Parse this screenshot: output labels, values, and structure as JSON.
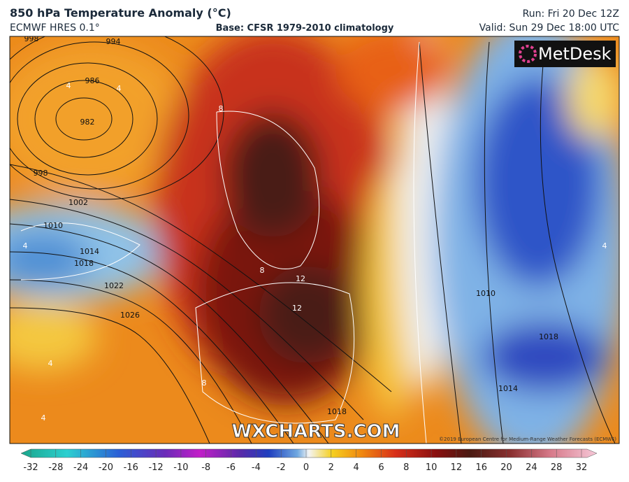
{
  "header": {
    "title": "850 hPa Temperature Anomaly (°C)",
    "model": "ECMWF HRES 0.1°",
    "base": "Base: CFSR 1979-2010 climatology",
    "run": "Run: Fri 20 Dec 12Z",
    "valid": "Valid: Sun 29 Dec 18:00 UTC"
  },
  "logo": "MetDesk",
  "watermark": "WXCHARTS.COM",
  "copyright": "©2019 European Centre for Medium-Range Weather Forecasts (ECMWF)",
  "map": {
    "isobar_labels": [
      998,
      994,
      986,
      982,
      998,
      1002,
      1010,
      1014,
      1018,
      1022,
      1026,
      1010,
      1018,
      1014,
      1018
    ],
    "anomaly_labels": [
      4,
      4,
      8,
      8,
      12,
      12,
      8,
      4,
      4,
      4,
      4
    ]
  },
  "colorbar": {
    "labels": [
      -32,
      -28,
      -24,
      -20,
      -16,
      -12,
      -10,
      -8,
      -6,
      -4,
      -2,
      0,
      2,
      4,
      6,
      8,
      10,
      12,
      16,
      20,
      24,
      28,
      32
    ]
  }
}
